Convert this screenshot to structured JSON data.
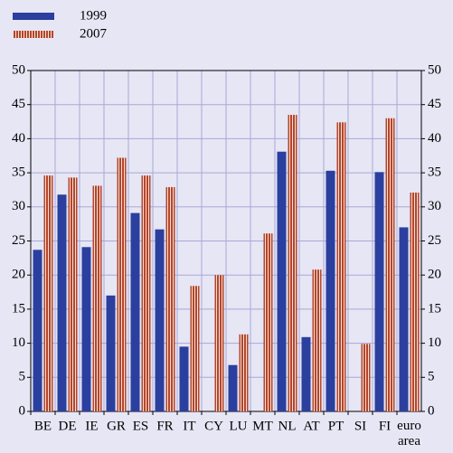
{
  "chart_data": {
    "type": "bar",
    "categories": [
      "BE",
      "DE",
      "IE",
      "GR",
      "ES",
      "FR",
      "IT",
      "CY",
      "LU",
      "MT",
      "NL",
      "AT",
      "PT",
      "SI",
      "FI",
      "euro area"
    ],
    "series": [
      {
        "name": "1999",
        "color": "#2b3f9e",
        "values": [
          23.7,
          31.8,
          24.1,
          17.0,
          29.1,
          26.7,
          9.5,
          null,
          6.8,
          null,
          38.1,
          10.9,
          35.3,
          null,
          35.1,
          27.0
        ]
      },
      {
        "name": "2007",
        "color": "#b5452a",
        "values": [
          34.6,
          34.3,
          33.1,
          37.2,
          34.6,
          32.9,
          18.4,
          20.0,
          11.3,
          26.1,
          43.5,
          20.8,
          42.4,
          9.9,
          43.0,
          32.1
        ]
      }
    ],
    "ylim": [
      0,
      50
    ],
    "yticks": [
      0,
      5,
      10,
      15,
      20,
      25,
      30,
      35,
      40,
      45,
      50
    ],
    "grid": true
  }
}
